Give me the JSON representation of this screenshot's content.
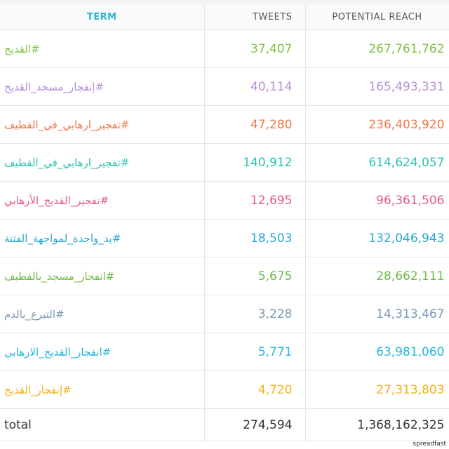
{
  "table": {
    "headers": {
      "term": "TERM",
      "tweets": "TWEETS",
      "reach": "POTENTIAL REACH"
    },
    "rows": [
      {
        "term": "القديح#",
        "tweets": "37,407",
        "reach": "267,761,762",
        "color": "#7dc242"
      },
      {
        "term": "إنفجار_مسجد_القديح#",
        "tweets": "40,114",
        "reach": "165,493,331",
        "color": "#b48fd8"
      },
      {
        "term": "تفجير_ارهابي_في_القطيف#",
        "tweets": "47,280",
        "reach": "236,403,920",
        "color": "#f07a4a"
      },
      {
        "term": "تفجير_ارهابي_في_القطيف#",
        "tweets": "140,912",
        "reach": "614,624,057",
        "color": "#2bc2b0"
      },
      {
        "term": "تفجير_القديح_الأرهابي#",
        "tweets": "12,695",
        "reach": "96,361,506",
        "color": "#e8578a"
      },
      {
        "term": "يد_واحدة_لمواجهة_الفتنة#",
        "tweets": "18,503",
        "reach": "132,046,943",
        "color": "#2aa6d2"
      },
      {
        "term": "انفجار_مسجد_بالقطيف#",
        "tweets": "5,675",
        "reach": "28,662,111",
        "color": "#6cba4a"
      },
      {
        "term": "التبرع_بالدم#",
        "tweets": "3,228",
        "reach": "14,313,467",
        "color": "#7c9ab6"
      },
      {
        "term": "انفجار_القديح_الارهابي#",
        "tweets": "5,771",
        "reach": "63,981,060",
        "color": "#22b7dd"
      },
      {
        "term": "إنفجار_القديح#",
        "tweets": "4,720",
        "reach": "27,313,803",
        "color": "#f0b21e"
      }
    ],
    "total": {
      "label": "total",
      "tweets": "274,594",
      "reach": "1,368,162,325"
    }
  },
  "watermark": "spreadfast"
}
